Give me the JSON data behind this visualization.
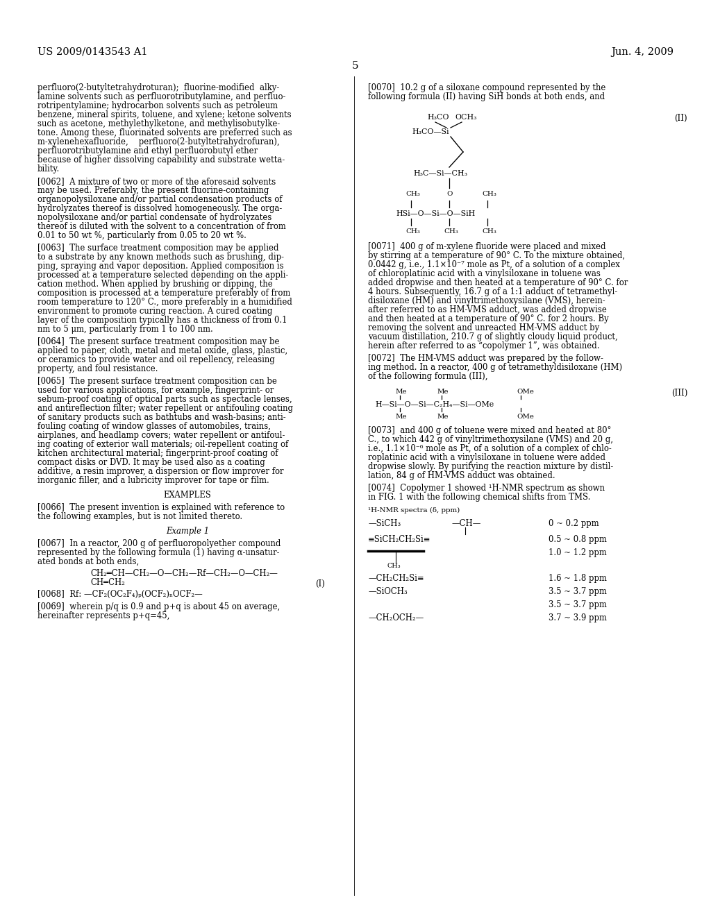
{
  "page_number": "5",
  "header_left": "US 2009/0143543 A1",
  "header_right": "Jun. 4, 2009",
  "background_color": "#ffffff"
}
